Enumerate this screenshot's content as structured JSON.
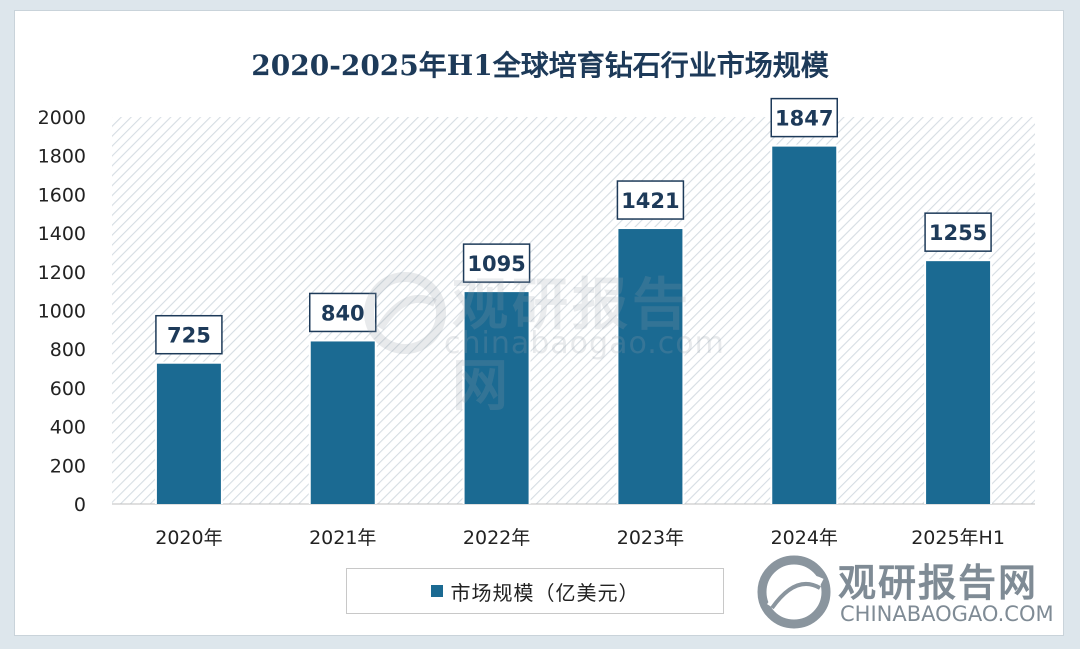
{
  "chart_data": {
    "type": "bar",
    "title": "2020-2025年H1全球培育钻石行业市场规模",
    "categories": [
      "2020年",
      "2021年",
      "2022年",
      "2023年",
      "2024年",
      "2025年H1"
    ],
    "series": [
      {
        "name": "市场规模（亿美元）",
        "values": [
          725,
          840,
          1095,
          1421,
          1847,
          1255
        ]
      }
    ],
    "y_ticks": [
      "0",
      "200",
      "400",
      "600",
      "800",
      "1000",
      "1200",
      "1400",
      "1600",
      "1800",
      "2000"
    ],
    "ylim": [
      0,
      2000
    ],
    "xlabel": "",
    "ylabel": "",
    "legend_position": "bottom",
    "grid": false,
    "colors": {
      "bar": "#1b6a92",
      "title": "#1d3a59",
      "plot_hatch": "#d6dde3"
    }
  },
  "legend": {
    "label": "市场规模（亿美元）"
  },
  "watermark": {
    "center_cn": "观研报告网",
    "center_en": "chinabaogao.com",
    "corner_cn": "观研报告网",
    "corner_en": "CHINABAOGAO.COM"
  }
}
